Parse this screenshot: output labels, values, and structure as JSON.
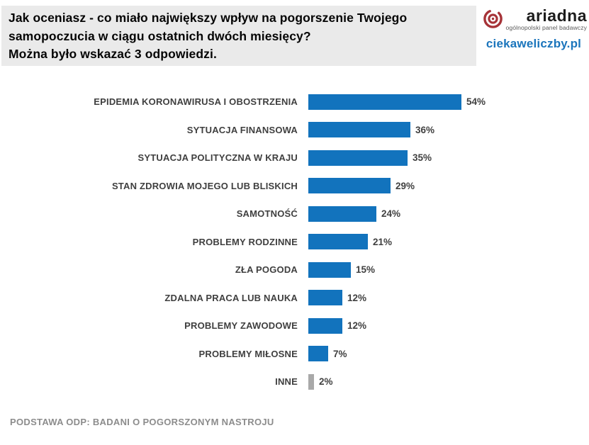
{
  "header": {
    "background_color": "#EAEAEA",
    "title_lines": [
      "Jak oceniasz - co miało największy wpływ na pogorszenie Twojego",
      "samopoczucia w ciągu ostatnich dwóch miesięcy?",
      "Można było wskazać 3 odpowiedzi."
    ]
  },
  "logo": {
    "brand": "ariadna",
    "tagline": "ogólnopolski panel badawczy",
    "site": "ciekaweliczby.pl",
    "brand_color": "#A63338",
    "site_color": "#1B75BC",
    "icon": "spiral-rings-icon"
  },
  "chart_data": {
    "type": "bar",
    "orientation": "horizontal",
    "unit": "%",
    "categories": [
      "EPIDEMIA KORONAWIRUSA I OBOSTRZENIA",
      "SYTUACJA FINANSOWA",
      "SYTUACJA POLITYCZNA W KRAJU",
      "STAN ZDROWIA MOJEGO LUB BLISKICH",
      "SAMOTNOŚĆ",
      "PROBLEMY RODZINNE",
      "ZŁA POGODA",
      "ZDALNA PRACA LUB NAUKA",
      "PROBLEMY ZAWODOWE",
      "PROBLEMY MIŁOSNE",
      "INNE"
    ],
    "values": [
      54,
      36,
      35,
      29,
      24,
      21,
      15,
      12,
      12,
      7,
      2
    ],
    "colors": [
      "#1273BD",
      "#1273BD",
      "#1273BD",
      "#1273BD",
      "#1273BD",
      "#1273BD",
      "#1273BD",
      "#1273BD",
      "#1273BD",
      "#1273BD",
      "#A9A9A9"
    ],
    "bar_color": "#1273BD",
    "muted_bar_color": "#A9A9A9",
    "xlim": [
      0,
      60
    ],
    "grid": false,
    "legend": false,
    "value_labels_shown": true,
    "title": "",
    "xlabel": "",
    "ylabel": ""
  },
  "footer": {
    "note": "PODSTAWA ODP: BADANI O POGORSZONYM NASTROJU"
  }
}
